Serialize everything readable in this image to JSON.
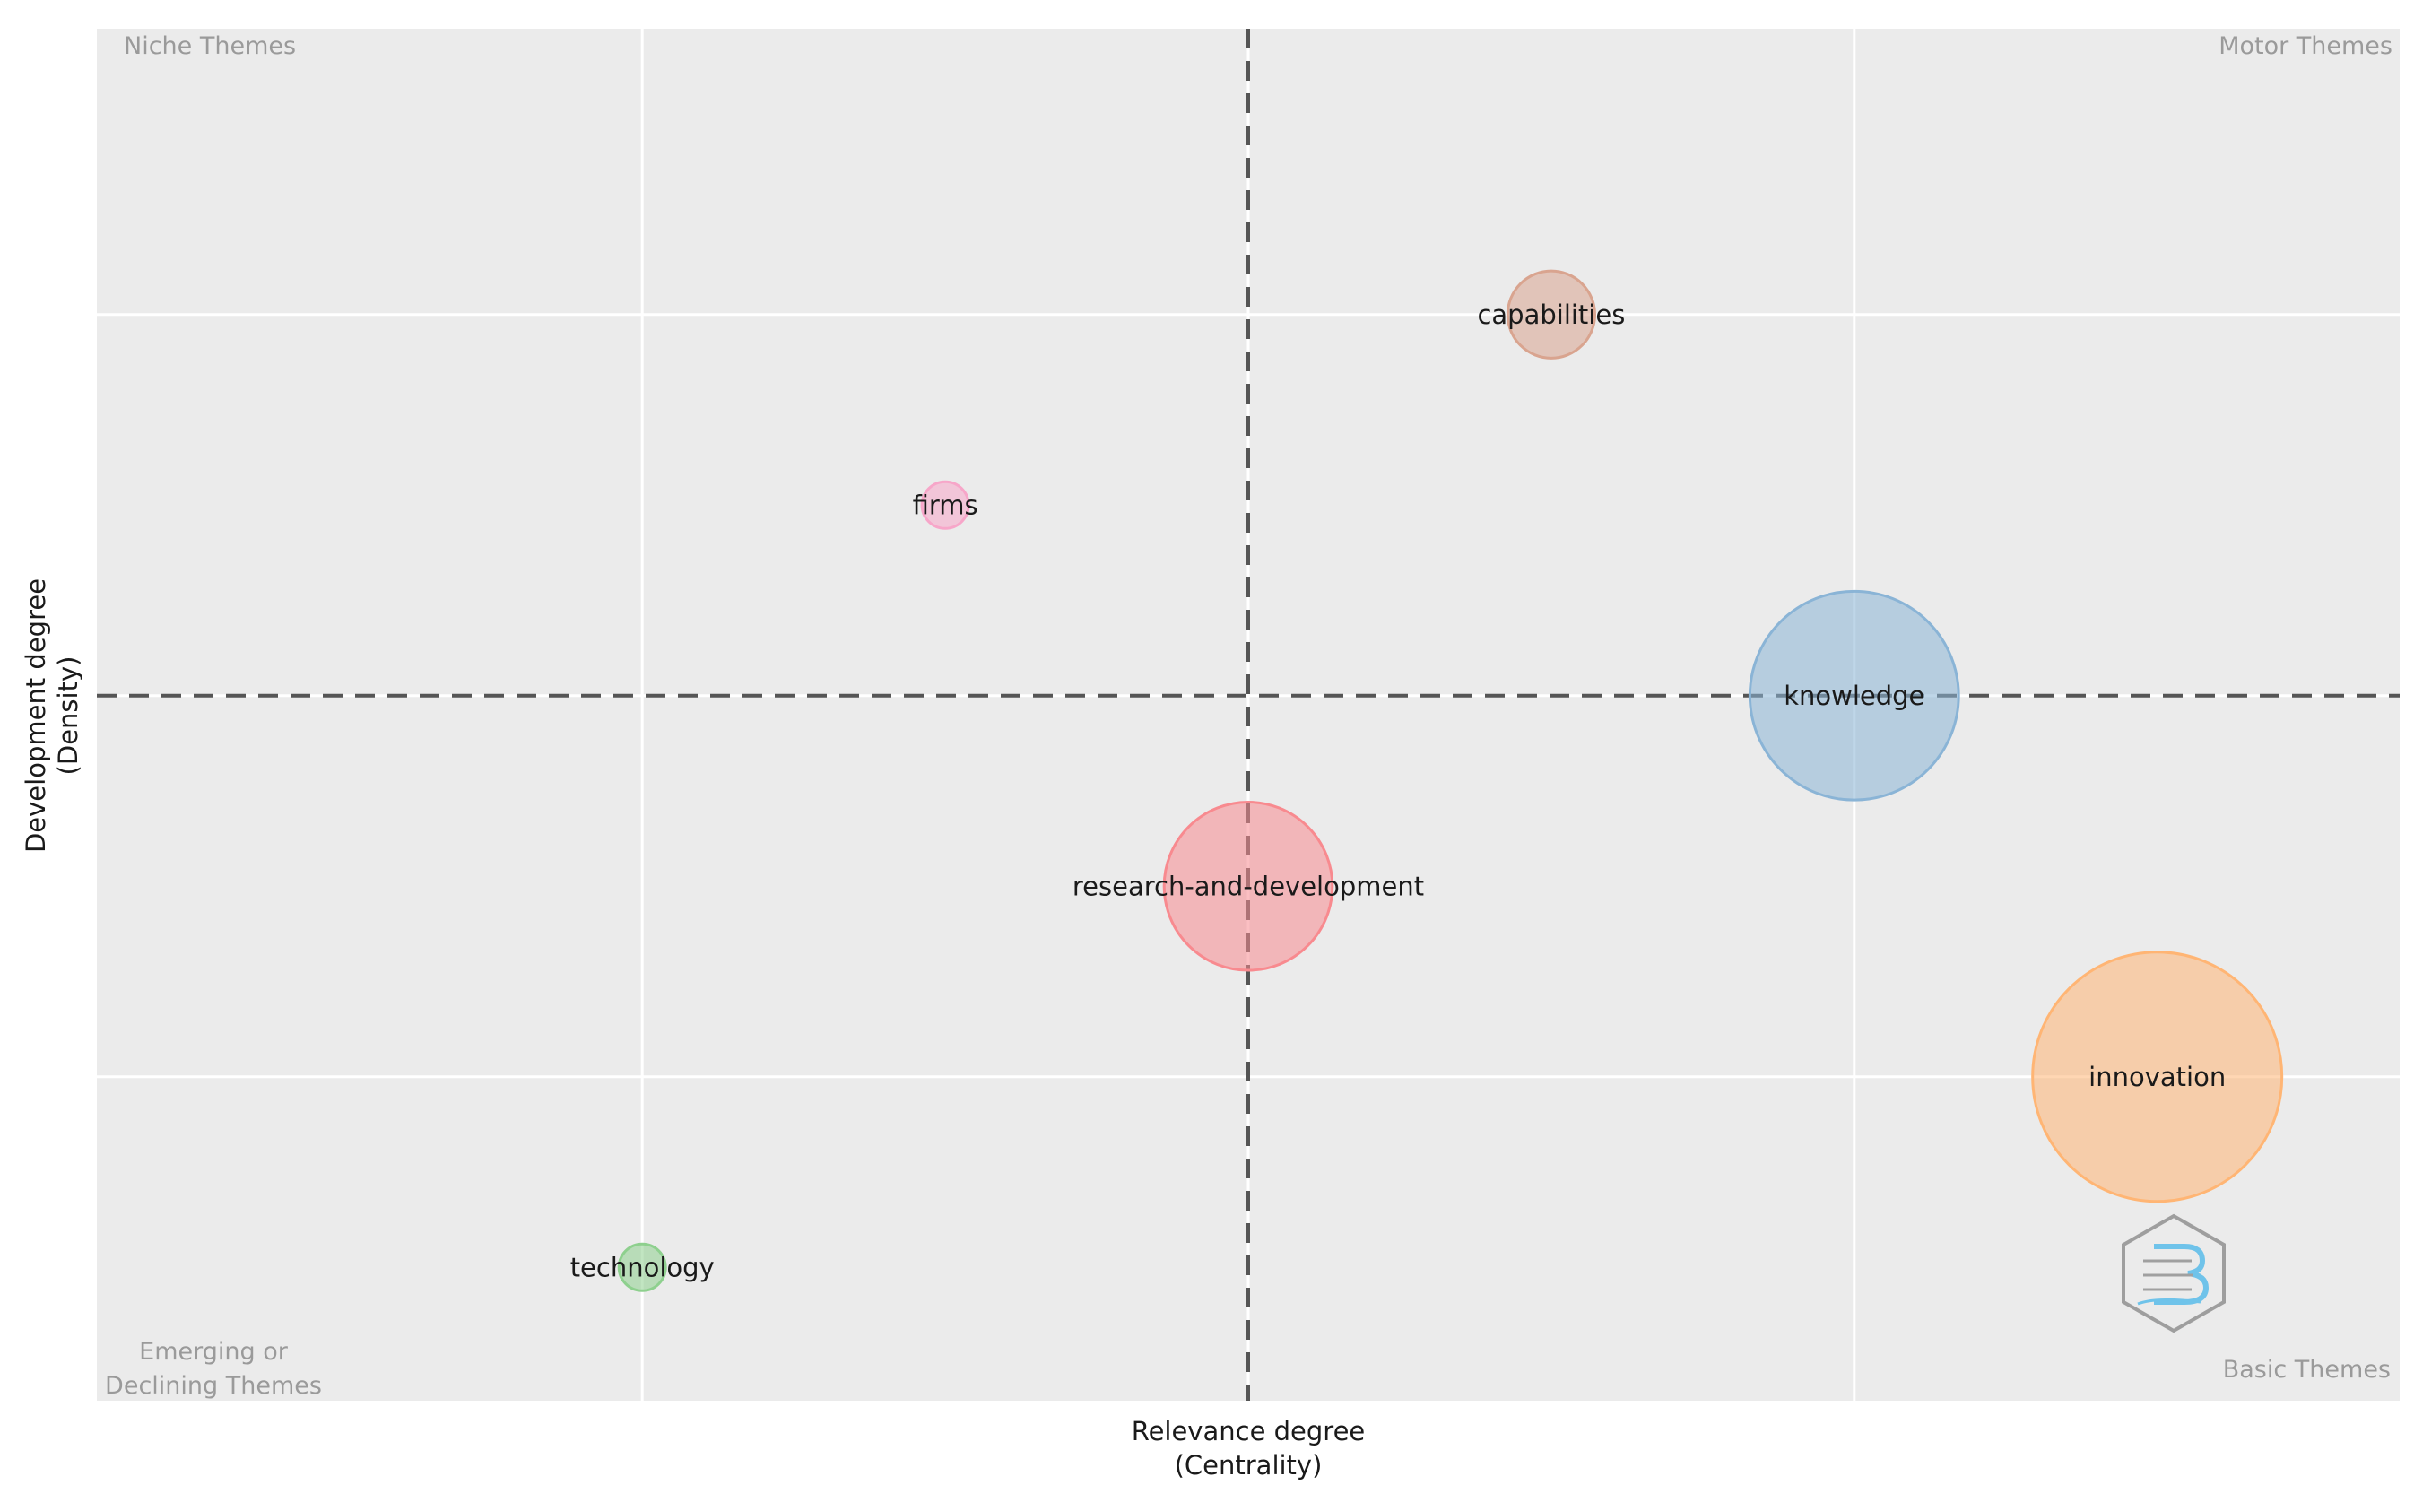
{
  "chart_data": {
    "type": "scatter",
    "xlabel": "Relevance degree\n(Centrality)",
    "ylabel": "Development degree\n(Density)",
    "quadrants": {
      "top_left": "Niche Themes",
      "top_right": "Motor Themes",
      "bottom_left": "Emerging or\nDeclining Themes",
      "bottom_right": "Basic Themes"
    },
    "grid": true,
    "background": "#ebebeb",
    "points": [
      {
        "label": "capabilities",
        "x": 3.5,
        "y": 4.0,
        "size": 2,
        "color": "#d9a48f"
      },
      {
        "label": "firms",
        "x": 2.5,
        "y": 3.0,
        "size": 1,
        "color": "#f7a6c9"
      },
      {
        "label": "knowledge",
        "x": 4.0,
        "y": 2.0,
        "size": 5,
        "color": "#8ab4d6"
      },
      {
        "label": "research-and-development",
        "x": 3.0,
        "y": 1.0,
        "size": 4,
        "color": "#f88a8f"
      },
      {
        "label": "innovation",
        "x": 4.5,
        "y": 0.0,
        "size": 6,
        "color": "#ffb574"
      },
      {
        "label": "technology",
        "x": 2.0,
        "y": -1.0,
        "size": 1,
        "color": "#8ed08e"
      }
    ],
    "reference_lines": {
      "x": 3.0,
      "y": 2.0
    },
    "xlim": [
      1.1,
      4.9
    ],
    "ylim": [
      -1.7,
      5.5
    ]
  }
}
